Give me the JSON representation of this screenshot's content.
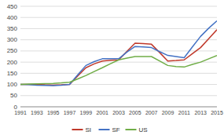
{
  "chart_data": {
    "type": "line",
    "x": [
      1991,
      1992,
      1993,
      1994,
      1995,
      1996,
      1997,
      1998,
      1999,
      2000,
      2001,
      2002,
      2003,
      2004,
      2005,
      2006,
      2007,
      2008,
      2009,
      2010,
      2011,
      2012,
      2013,
      2014,
      2015
    ],
    "series": [
      {
        "name": "SI",
        "color": "#c0392b",
        "values": [
          100,
          100,
          100,
          98,
          97,
          98,
          100,
          138,
          175,
          192,
          205,
          208,
          210,
          248,
          285,
          283,
          280,
          243,
          205,
          207,
          210,
          238,
          265,
          305,
          345
        ]
      },
      {
        "name": "SF",
        "color": "#4472c4",
        "values": [
          100,
          99,
          97,
          96,
          95,
          97,
          100,
          143,
          185,
          202,
          215,
          215,
          215,
          245,
          270,
          268,
          265,
          247,
          230,
          225,
          220,
          268,
          315,
          352,
          385
        ]
      },
      {
        "name": "US",
        "color": "#70ad47",
        "values": [
          100,
          102,
          103,
          104,
          105,
          107,
          110,
          125,
          140,
          158,
          175,
          193,
          210,
          218,
          225,
          225,
          225,
          205,
          185,
          180,
          178,
          190,
          200,
          215,
          230
        ]
      }
    ],
    "xlim": [
      1991,
      2015
    ],
    "xticks": [
      1991,
      1993,
      1995,
      1997,
      1999,
      2001,
      2003,
      2005,
      2007,
      2009,
      2011,
      2013,
      2015
    ],
    "ylim": [
      0,
      450
    ],
    "yticks": [
      0,
      50,
      100,
      150,
      200,
      250,
      300,
      350,
      400,
      450
    ],
    "grid": true,
    "legend": "bottom"
  }
}
